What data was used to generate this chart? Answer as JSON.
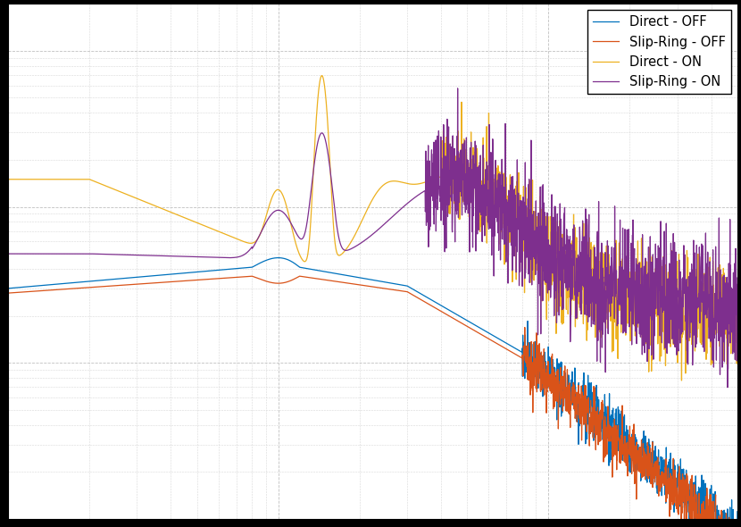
{
  "title": "",
  "xlabel": "",
  "ylabel": "",
  "legend_entries": [
    "Direct - OFF",
    "Slip-Ring - OFF",
    "Direct - ON",
    "Slip-Ring - ON"
  ],
  "colors": [
    "#0072bd",
    "#d95319",
    "#edb120",
    "#7e2f8e"
  ],
  "background_color": "#ffffff",
  "grid_color": "#b0b0b0",
  "xlim": [
    1,
    500
  ],
  "ylim": [
    1e-09,
    2e-06
  ]
}
